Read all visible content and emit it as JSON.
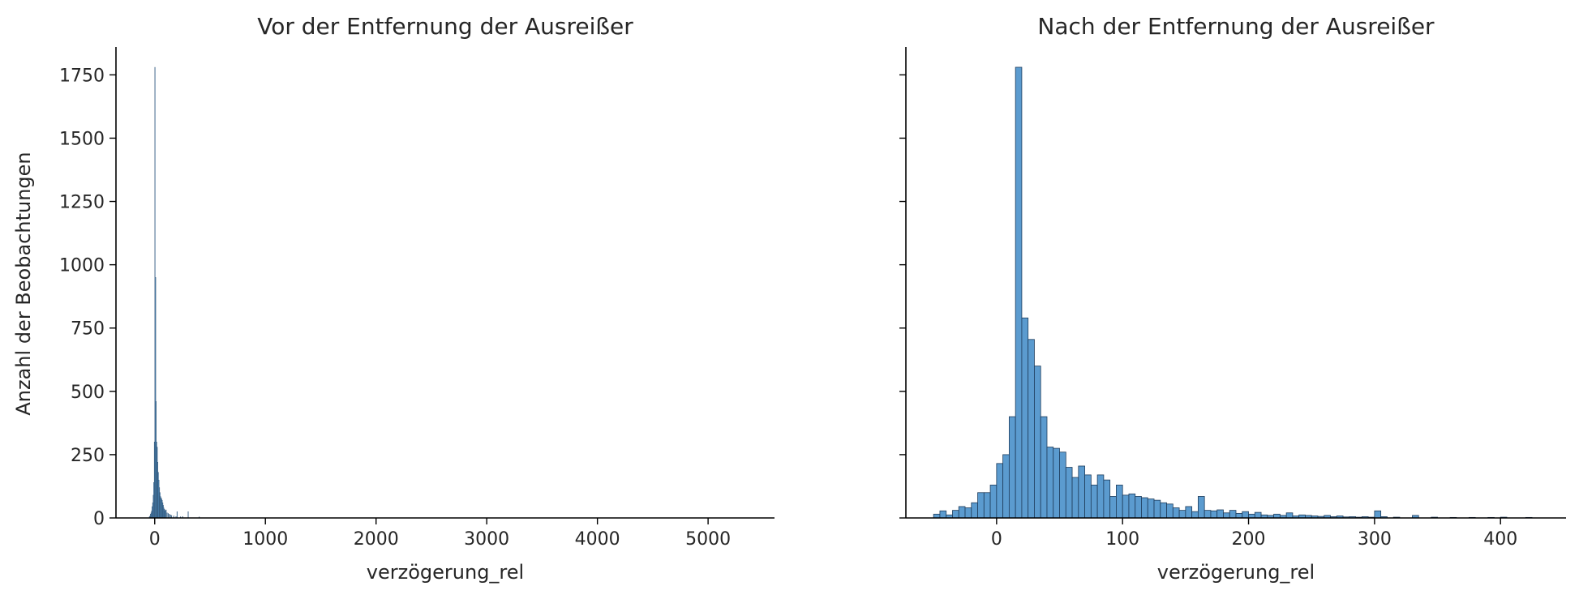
{
  "chart_data": [
    {
      "type": "bar",
      "title": "Vor der Entfernung der Ausreißer",
      "xlabel": "verzögerung_rel",
      "ylabel": "Anzahl der Beobachtungen",
      "xlim": [
        -350,
        5600
      ],
      "ylim": [
        0,
        1860
      ],
      "xticks": [
        0,
        1000,
        2000,
        3000,
        4000,
        5000
      ],
      "xtick_labels": [
        "0",
        "1000",
        "2000",
        "3000",
        "4000",
        "5000"
      ],
      "yticks": [
        0,
        250,
        500,
        750,
        1000,
        1250,
        1500,
        1750
      ],
      "ytick_labels": [
        "0",
        "250",
        "500",
        "750",
        "1000",
        "1250",
        "1500",
        "1750"
      ],
      "bin_width": 5,
      "bins": [
        {
          "x": -50,
          "count": 5
        },
        {
          "x": -45,
          "count": 8
        },
        {
          "x": -40,
          "count": 15
        },
        {
          "x": -35,
          "count": 20
        },
        {
          "x": -30,
          "count": 28
        },
        {
          "x": -25,
          "count": 45
        },
        {
          "x": -20,
          "count": 60
        },
        {
          "x": -15,
          "count": 90
        },
        {
          "x": -10,
          "count": 140
        },
        {
          "x": -5,
          "count": 300
        },
        {
          "x": 0,
          "count": 1780
        },
        {
          "x": 5,
          "count": 950
        },
        {
          "x": 10,
          "count": 460
        },
        {
          "x": 15,
          "count": 300
        },
        {
          "x": 20,
          "count": 280
        },
        {
          "x": 25,
          "count": 220
        },
        {
          "x": 30,
          "count": 180
        },
        {
          "x": 35,
          "count": 150
        },
        {
          "x": 40,
          "count": 120
        },
        {
          "x": 45,
          "count": 100
        },
        {
          "x": 50,
          "count": 85
        },
        {
          "x": 55,
          "count": 80
        },
        {
          "x": 60,
          "count": 75
        },
        {
          "x": 65,
          "count": 70
        },
        {
          "x": 70,
          "count": 60
        },
        {
          "x": 75,
          "count": 50
        },
        {
          "x": 80,
          "count": 40
        },
        {
          "x": 85,
          "count": 35
        },
        {
          "x": 90,
          "count": 30
        },
        {
          "x": 95,
          "count": 28
        },
        {
          "x": 100,
          "count": 32
        },
        {
          "x": 110,
          "count": 20
        },
        {
          "x": 120,
          "count": 18
        },
        {
          "x": 130,
          "count": 15
        },
        {
          "x": 140,
          "count": 12
        },
        {
          "x": 150,
          "count": 10
        },
        {
          "x": 170,
          "count": 8
        },
        {
          "x": 190,
          "count": 6
        },
        {
          "x": 200,
          "count": 25
        },
        {
          "x": 230,
          "count": 5
        },
        {
          "x": 250,
          "count": 6
        },
        {
          "x": 300,
          "count": 25
        },
        {
          "x": 400,
          "count": 4
        }
      ]
    },
    {
      "type": "bar",
      "title": "Nach der Entfernung der Ausreißer",
      "xlabel": "verzögerung_rel",
      "xlim": [
        -72,
        452
      ],
      "ylim": [
        0,
        1860
      ],
      "xticks": [
        0,
        100,
        200,
        300,
        400
      ],
      "xtick_labels": [
        "0",
        "100",
        "200",
        "300",
        "400"
      ],
      "yticks": [
        0,
        250,
        500,
        750,
        1000,
        1250,
        1500,
        1750
      ],
      "bin_width": 5,
      "bins": [
        {
          "x": -50,
          "count": 15
        },
        {
          "x": -45,
          "count": 28
        },
        {
          "x": -40,
          "count": 12
        },
        {
          "x": -35,
          "count": 30
        },
        {
          "x": -30,
          "count": 45
        },
        {
          "x": -25,
          "count": 40
        },
        {
          "x": -20,
          "count": 60
        },
        {
          "x": -15,
          "count": 100
        },
        {
          "x": -10,
          "count": 100
        },
        {
          "x": -5,
          "count": 130
        },
        {
          "x": 0,
          "count": 215
        },
        {
          "x": 5,
          "count": 250
        },
        {
          "x": 10,
          "count": 400
        },
        {
          "x": 15,
          "count": 1780
        },
        {
          "x": 20,
          "count": 790
        },
        {
          "x": 25,
          "count": 705
        },
        {
          "x": 30,
          "count": 600
        },
        {
          "x": 35,
          "count": 400
        },
        {
          "x": 40,
          "count": 280
        },
        {
          "x": 45,
          "count": 275
        },
        {
          "x": 50,
          "count": 260
        },
        {
          "x": 55,
          "count": 200
        },
        {
          "x": 60,
          "count": 160
        },
        {
          "x": 65,
          "count": 205
        },
        {
          "x": 70,
          "count": 170
        },
        {
          "x": 75,
          "count": 130
        },
        {
          "x": 80,
          "count": 170
        },
        {
          "x": 85,
          "count": 150
        },
        {
          "x": 90,
          "count": 85
        },
        {
          "x": 95,
          "count": 130
        },
        {
          "x": 100,
          "count": 90
        },
        {
          "x": 105,
          "count": 95
        },
        {
          "x": 110,
          "count": 85
        },
        {
          "x": 115,
          "count": 80
        },
        {
          "x": 120,
          "count": 75
        },
        {
          "x": 125,
          "count": 70
        },
        {
          "x": 130,
          "count": 60
        },
        {
          "x": 135,
          "count": 55
        },
        {
          "x": 140,
          "count": 40
        },
        {
          "x": 145,
          "count": 30
        },
        {
          "x": 150,
          "count": 45
        },
        {
          "x": 155,
          "count": 25
        },
        {
          "x": 160,
          "count": 85
        },
        {
          "x": 165,
          "count": 30
        },
        {
          "x": 170,
          "count": 28
        },
        {
          "x": 175,
          "count": 32
        },
        {
          "x": 180,
          "count": 20
        },
        {
          "x": 185,
          "count": 30
        },
        {
          "x": 190,
          "count": 18
        },
        {
          "x": 195,
          "count": 25
        },
        {
          "x": 200,
          "count": 15
        },
        {
          "x": 205,
          "count": 22
        },
        {
          "x": 210,
          "count": 12
        },
        {
          "x": 215,
          "count": 10
        },
        {
          "x": 220,
          "count": 15
        },
        {
          "x": 225,
          "count": 10
        },
        {
          "x": 230,
          "count": 20
        },
        {
          "x": 235,
          "count": 8
        },
        {
          "x": 240,
          "count": 12
        },
        {
          "x": 245,
          "count": 10
        },
        {
          "x": 250,
          "count": 8
        },
        {
          "x": 255,
          "count": 6
        },
        {
          "x": 260,
          "count": 10
        },
        {
          "x": 265,
          "count": 5
        },
        {
          "x": 270,
          "count": 8
        },
        {
          "x": 275,
          "count": 4
        },
        {
          "x": 280,
          "count": 5
        },
        {
          "x": 285,
          "count": 3
        },
        {
          "x": 290,
          "count": 5
        },
        {
          "x": 295,
          "count": 3
        },
        {
          "x": 300,
          "count": 28
        },
        {
          "x": 305,
          "count": 5
        },
        {
          "x": 315,
          "count": 3
        },
        {
          "x": 330,
          "count": 10
        },
        {
          "x": 345,
          "count": 3
        },
        {
          "x": 360,
          "count": 2
        },
        {
          "x": 375,
          "count": 2
        },
        {
          "x": 390,
          "count": 2
        },
        {
          "x": 400,
          "count": 3
        },
        {
          "x": 420,
          "count": 2
        }
      ]
    }
  ],
  "colors": {
    "bar_fill": "#5b9bcf",
    "bar_edge": "#1f3d5c",
    "axis": "#000000",
    "text": "#262626"
  }
}
